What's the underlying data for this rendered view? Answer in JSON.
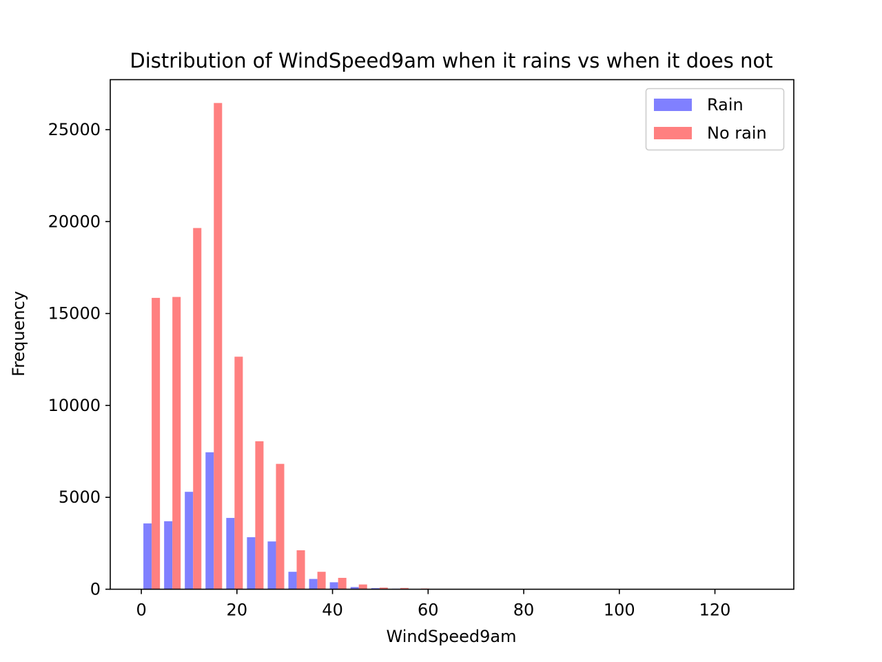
{
  "chart_data": {
    "type": "bar",
    "title": "Distribution of WindSpeed9am when it rains vs when it does not",
    "xlabel": "WindSpeed9am",
    "ylabel": "Frequency",
    "xlim": [
      -6.5,
      136.5
    ],
    "ylim": [
      0,
      27720
    ],
    "xticks": [
      0,
      20,
      40,
      60,
      80,
      100,
      120
    ],
    "yticks": [
      0,
      5000,
      10000,
      15000,
      20000,
      25000
    ],
    "bin_edges": [
      0,
      4.333,
      8.667,
      13,
      17.333,
      21.667,
      26,
      30.333,
      34.667,
      39,
      43.333,
      47.667,
      52,
      56.333,
      60.667,
      65,
      69.333,
      73.667,
      78,
      82.333,
      86.667,
      91,
      95.333,
      99.667,
      104,
      108.333,
      112.667,
      117,
      121.333,
      125.667,
      130
    ],
    "grid": false,
    "legend_position": "top-right",
    "series": [
      {
        "name": "Rain",
        "color": "#8080ff",
        "values": [
          3580,
          3700,
          5300,
          7450,
          3880,
          2830,
          2600,
          950,
          560,
          380,
          120,
          60,
          30,
          15,
          8,
          4,
          2,
          1,
          1,
          1,
          0,
          0,
          0,
          0,
          0,
          0,
          0,
          0,
          0,
          1
        ]
      },
      {
        "name": "No rain",
        "color": "#ff8080",
        "values": [
          15850,
          15900,
          19650,
          26450,
          12650,
          8050,
          6820,
          2120,
          950,
          620,
          260,
          90,
          70,
          40,
          20,
          10,
          5,
          3,
          2,
          1,
          1,
          1,
          0,
          0,
          0,
          0,
          0,
          0,
          0,
          2
        ]
      }
    ]
  }
}
